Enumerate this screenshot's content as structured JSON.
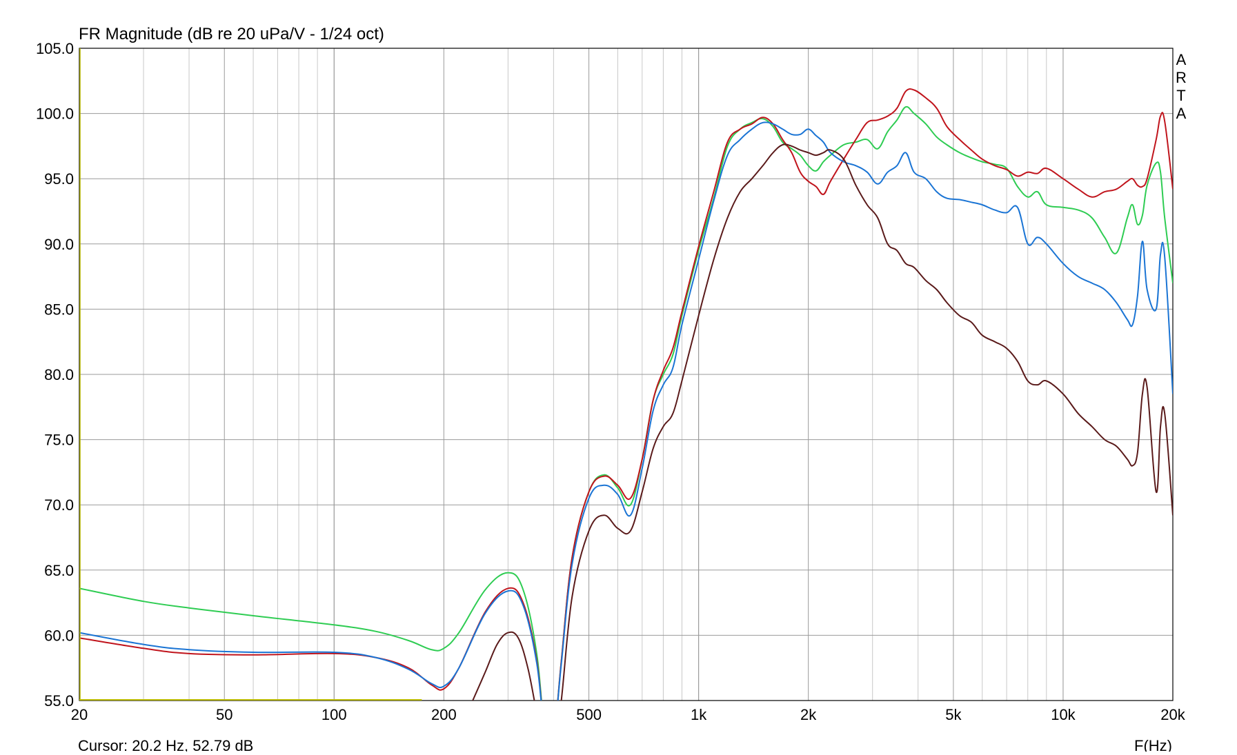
{
  "title": "FR Magnitude (dB re 20 uPa/V - 1/24 oct)",
  "brand": [
    "A",
    "R",
    "T",
    "A"
  ],
  "cursor_text": "Cursor: 20.2 Hz, 52.79 dB",
  "xlabel": "F(Hz)",
  "chart_data": {
    "type": "line",
    "title": "FR Magnitude (dB re 20 uPa/V - 1/24 oct)",
    "xlabel": "F(Hz)",
    "ylabel": "",
    "x_scale": "log",
    "xlim": [
      20,
      20000
    ],
    "ylim": [
      55,
      105
    ],
    "grid": true,
    "legend": "none",
    "x_ticks": [
      {
        "value": 20,
        "label": "20"
      },
      {
        "value": 50,
        "label": "50"
      },
      {
        "value": 100,
        "label": "100"
      },
      {
        "value": 200,
        "label": "200"
      },
      {
        "value": 500,
        "label": "500"
      },
      {
        "value": 1000,
        "label": "1k"
      },
      {
        "value": 2000,
        "label": "2k"
      },
      {
        "value": 5000,
        "label": "5k"
      },
      {
        "value": 10000,
        "label": "10k"
      },
      {
        "value": 20000,
        "label": "20k"
      }
    ],
    "y_ticks": [
      {
        "value": 105,
        "label": "105.0"
      },
      {
        "value": 100,
        "label": "100.0"
      },
      {
        "value": 95,
        "label": "95.0"
      },
      {
        "value": 90,
        "label": "90.0"
      },
      {
        "value": 85,
        "label": "85.0"
      },
      {
        "value": 80,
        "label": "80.0"
      },
      {
        "value": 75,
        "label": "75.0"
      },
      {
        "value": 70,
        "label": "70.0"
      },
      {
        "value": 65,
        "label": "65.0"
      },
      {
        "value": 60,
        "label": "60.0"
      },
      {
        "value": 55,
        "label": "55.0"
      }
    ],
    "cursor_marker": {
      "x": [
        20,
        174
      ],
      "y": 55,
      "color": "#b8b800"
    },
    "series": [
      {
        "color": "#2ecc52",
        "x": [
          20,
          30,
          40,
          60,
          100,
          130,
          160,
          185,
          200,
          220,
          260,
          300,
          330,
          360,
          380,
          400,
          420,
          450,
          500,
          550,
          600,
          650,
          700,
          750,
          800,
          850,
          900,
          1000,
          1100,
          1200,
          1300,
          1400,
          1500,
          1600,
          1700,
          1800,
          1900,
          2000,
          2100,
          2200,
          2300,
          2500,
          2700,
          2900,
          3100,
          3300,
          3500,
          3700,
          3900,
          4200,
          4500,
          4800,
          5200,
          5600,
          6000,
          6500,
          7000,
          7500,
          8000,
          8500,
          9000,
          10000,
          11000,
          12000,
          13000,
          14000,
          15000,
          15500,
          16000,
          16500,
          17000,
          18000,
          18500,
          19000,
          20000
        ],
        "y": [
          63.6,
          62.6,
          62.1,
          61.5,
          60.8,
          60.3,
          59.6,
          58.9,
          59.0,
          60.2,
          63.5,
          64.8,
          63.5,
          58.5,
          52.0,
          52.0,
          58.0,
          66.0,
          71.0,
          72.3,
          71.3,
          70.0,
          73.5,
          78.0,
          80.0,
          81.5,
          84.5,
          89.5,
          93.5,
          97.5,
          98.8,
          99.3,
          99.6,
          99.0,
          97.8,
          97.3,
          96.8,
          96.0,
          95.6,
          96.3,
          96.8,
          97.6,
          97.8,
          98.0,
          97.3,
          98.6,
          99.5,
          100.5,
          100.0,
          99.2,
          98.2,
          97.6,
          97.0,
          96.6,
          96.3,
          96.1,
          95.8,
          94.4,
          93.6,
          94.0,
          93.0,
          92.8,
          92.6,
          92.0,
          90.5,
          89.3,
          92.0,
          93.0,
          91.5,
          92.2,
          94.5,
          96.2,
          95.5,
          92.0,
          87.0
        ]
      },
      {
        "color": "#c0141c",
        "x": [
          20,
          30,
          40,
          60,
          100,
          130,
          160,
          185,
          200,
          220,
          260,
          300,
          330,
          360,
          380,
          400,
          420,
          450,
          500,
          550,
          600,
          650,
          700,
          750,
          800,
          850,
          900,
          1000,
          1100,
          1200,
          1300,
          1400,
          1500,
          1600,
          1700,
          1800,
          1900,
          2000,
          2100,
          2200,
          2300,
          2500,
          2700,
          2900,
          3100,
          3300,
          3500,
          3700,
          3900,
          4200,
          4500,
          4800,
          5200,
          5600,
          6000,
          6500,
          7000,
          7500,
          8000,
          8500,
          9000,
          10000,
          11000,
          12000,
          13000,
          14000,
          15000,
          15500,
          16000,
          16500,
          17000,
          18000,
          18500,
          19000,
          20000
        ],
        "y": [
          59.8,
          59.0,
          58.6,
          58.5,
          58.6,
          58.3,
          57.5,
          56.2,
          55.9,
          57.5,
          61.8,
          63.6,
          62.5,
          58.0,
          52.0,
          52.0,
          58.0,
          66.0,
          71.0,
          72.2,
          71.5,
          70.5,
          73.5,
          78.0,
          80.3,
          82.0,
          84.8,
          89.8,
          94.0,
          97.8,
          98.8,
          99.2,
          99.7,
          99.2,
          98.0,
          97.0,
          95.5,
          94.8,
          94.4,
          93.8,
          94.8,
          96.5,
          98.0,
          99.3,
          99.5,
          99.8,
          100.4,
          101.7,
          101.8,
          101.2,
          100.4,
          99.0,
          98.0,
          97.2,
          96.5,
          96.0,
          95.7,
          95.2,
          95.5,
          95.4,
          95.8,
          95.0,
          94.2,
          93.6,
          94.0,
          94.2,
          94.8,
          95.0,
          94.5,
          94.4,
          95.0,
          98.0,
          99.8,
          99.4,
          94.2
        ]
      },
      {
        "color": "#1a74d4",
        "x": [
          20,
          30,
          40,
          60,
          100,
          130,
          160,
          185,
          200,
          220,
          260,
          300,
          330,
          360,
          380,
          400,
          420,
          450,
          500,
          550,
          600,
          650,
          700,
          750,
          800,
          850,
          900,
          1000,
          1100,
          1200,
          1300,
          1400,
          1500,
          1600,
          1700,
          1800,
          1900,
          2000,
          2100,
          2200,
          2300,
          2500,
          2700,
          2900,
          3100,
          3300,
          3500,
          3700,
          3900,
          4200,
          4500,
          4800,
          5200,
          5600,
          6000,
          6500,
          7000,
          7500,
          8000,
          8500,
          9000,
          10000,
          11000,
          12000,
          13000,
          14000,
          15000,
          15500,
          16000,
          16500,
          17000,
          18000,
          18500,
          19000,
          20000
        ],
        "y": [
          60.2,
          59.3,
          58.9,
          58.7,
          58.7,
          58.3,
          57.4,
          56.3,
          56.1,
          57.5,
          61.7,
          63.4,
          62.3,
          57.8,
          52.0,
          52.0,
          57.8,
          65.5,
          70.5,
          71.5,
          70.8,
          69.2,
          72.8,
          77.2,
          79.2,
          80.5,
          83.8,
          88.8,
          93.3,
          96.8,
          98.0,
          98.8,
          99.3,
          99.2,
          98.8,
          98.4,
          98.4,
          98.8,
          98.3,
          97.8,
          97.0,
          96.3,
          96.0,
          95.5,
          94.6,
          95.5,
          96.0,
          97.0,
          95.5,
          95.0,
          94.0,
          93.5,
          93.4,
          93.2,
          93.0,
          92.6,
          92.4,
          92.8,
          90.0,
          90.5,
          90.0,
          88.5,
          87.5,
          87.0,
          86.5,
          85.5,
          84.2,
          83.8,
          86.0,
          90.2,
          86.5,
          85.0,
          89.2,
          89.0,
          78.5
        ]
      },
      {
        "color": "#5a1a1a",
        "x": [
          240,
          260,
          280,
          300,
          320,
          340,
          360,
          380,
          400,
          420,
          450,
          500,
          550,
          600,
          650,
          700,
          750,
          800,
          850,
          900,
          1000,
          1100,
          1200,
          1300,
          1400,
          1500,
          1600,
          1700,
          1800,
          1900,
          2000,
          2100,
          2200,
          2300,
          2500,
          2700,
          2900,
          3100,
          3300,
          3500,
          3700,
          3900,
          4200,
          4500,
          4800,
          5200,
          5600,
          6000,
          6500,
          7000,
          7500,
          8000,
          8500,
          9000,
          10000,
          11000,
          12000,
          13000,
          14000,
          15000,
          15500,
          16000,
          16500,
          17000,
          18000,
          18500,
          19000,
          20000
        ],
        "y": [
          55.0,
          57.2,
          59.3,
          60.2,
          59.8,
          57.5,
          54.0,
          51.0,
          51.0,
          55.0,
          63.0,
          68.0,
          69.2,
          68.2,
          68.0,
          71.0,
          74.3,
          76.0,
          77.0,
          79.5,
          84.5,
          88.8,
          92.0,
          94.0,
          95.0,
          96.0,
          97.0,
          97.6,
          97.5,
          97.2,
          97.0,
          96.8,
          97.0,
          97.2,
          96.5,
          94.5,
          93.0,
          92.0,
          90.0,
          89.5,
          88.5,
          88.2,
          87.2,
          86.5,
          85.5,
          84.5,
          84.0,
          83.0,
          82.5,
          82.0,
          81.0,
          79.5,
          79.2,
          79.5,
          78.5,
          77.0,
          76.0,
          75.0,
          74.5,
          73.5,
          73.0,
          74.0,
          78.5,
          79.0,
          71.0,
          76.0,
          77.0,
          69.2
        ]
      }
    ]
  }
}
